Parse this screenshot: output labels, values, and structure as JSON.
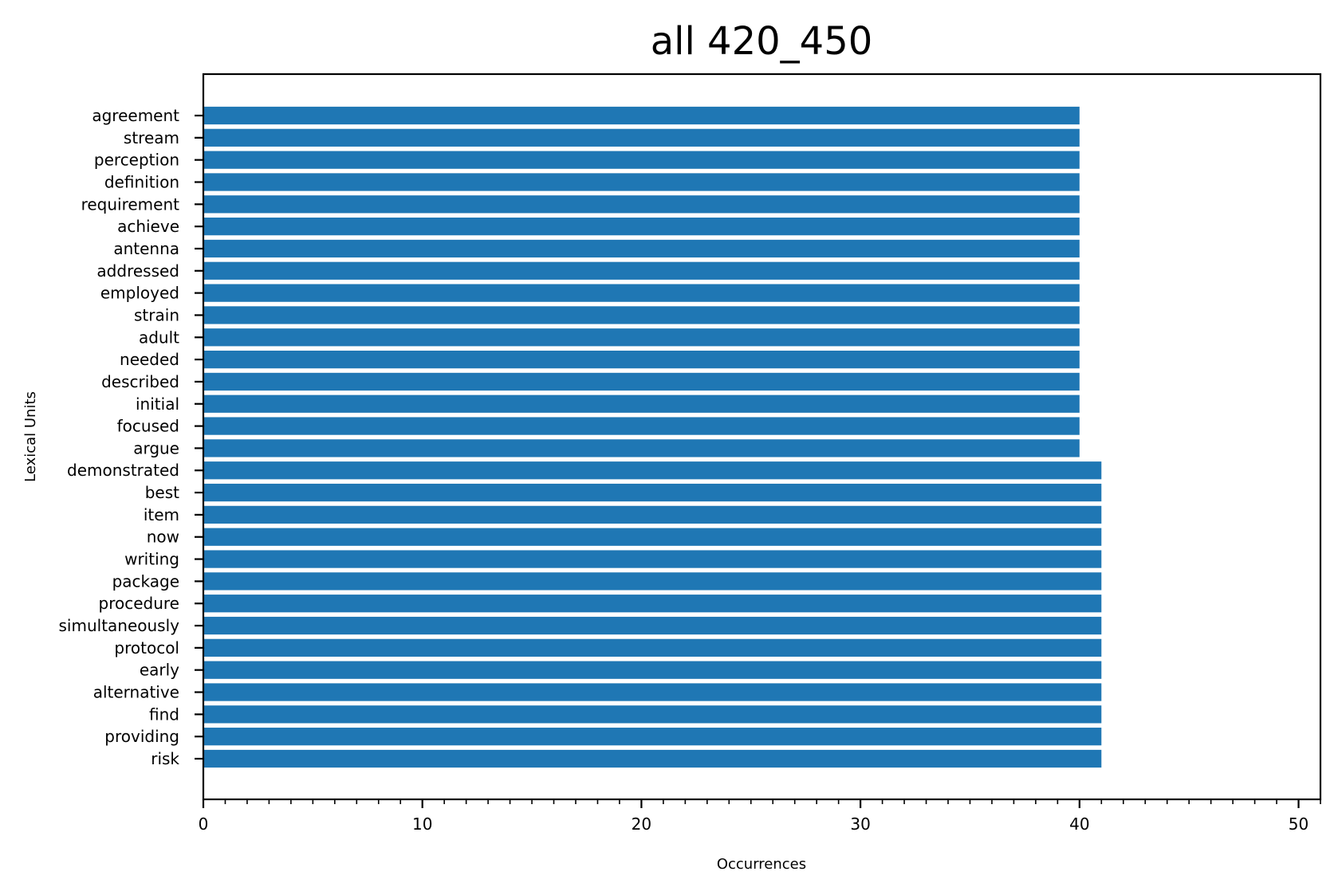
{
  "chart_data": {
    "type": "bar",
    "orientation": "horizontal",
    "title": "all 420_450",
    "xlabel": "Occurrences",
    "ylabel": "Lexical Units",
    "xlim": [
      0,
      51
    ],
    "x_ticks": [
      0,
      10,
      20,
      30,
      40,
      50
    ],
    "grid": false,
    "bar_color": "#1f77b4",
    "categories": [
      "agreement",
      "stream",
      "perception",
      "definition",
      "requirement",
      "achieve",
      "antenna",
      "addressed",
      "employed",
      "strain",
      "adult",
      "needed",
      "described",
      "initial",
      "focused",
      "argue",
      "demonstrated",
      "best",
      "item",
      "now",
      "writing",
      "package",
      "procedure",
      "simultaneously",
      "protocol",
      "early",
      "alternative",
      "find",
      "providing",
      "risk"
    ],
    "values": [
      40,
      40,
      40,
      40,
      40,
      40,
      40,
      40,
      40,
      40,
      40,
      40,
      40,
      40,
      40,
      40,
      41,
      41,
      41,
      41,
      41,
      41,
      41,
      41,
      41,
      41,
      41,
      41,
      41,
      41
    ]
  }
}
